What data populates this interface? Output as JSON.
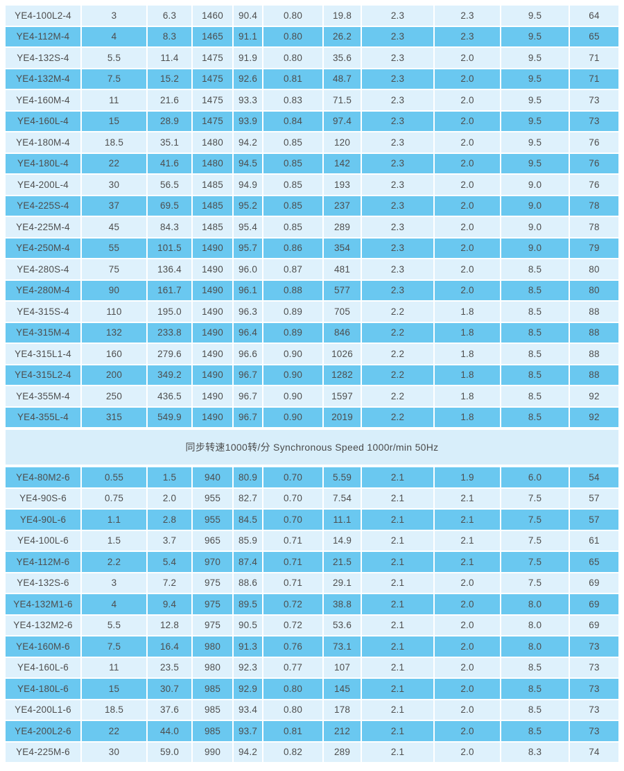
{
  "colors": {
    "row_dark": "#6AC8F0",
    "row_light": "#DEF1FC",
    "divider_band": "#D8EEFA",
    "grid_line": "#FFFFFF",
    "text": "#4D4D4D"
  },
  "divider": {
    "label": "同步转速1000转/分 Synchronous Speed 1000r/min 50Hz"
  },
  "table_1500rpm": {
    "rows": [
      [
        "YE4-100L2-4",
        "3",
        "6.3",
        "1460",
        "90.4",
        "0.80",
        "19.8",
        "2.3",
        "2.3",
        "9.5",
        "64"
      ],
      [
        "YE4-112M-4",
        "4",
        "8.3",
        "1465",
        "91.1",
        "0.80",
        "26.2",
        "2.3",
        "2.3",
        "9.5",
        "65"
      ],
      [
        "YE4-132S-4",
        "5.5",
        "11.4",
        "1475",
        "91.9",
        "0.80",
        "35.6",
        "2.3",
        "2.0",
        "9.5",
        "71"
      ],
      [
        "YE4-132M-4",
        "7.5",
        "15.2",
        "1475",
        "92.6",
        "0.81",
        "48.7",
        "2.3",
        "2.0",
        "9.5",
        "71"
      ],
      [
        "YE4-160M-4",
        "11",
        "21.6",
        "1475",
        "93.3",
        "0.83",
        "71.5",
        "2.3",
        "2.0",
        "9.5",
        "73"
      ],
      [
        "YE4-160L-4",
        "15",
        "28.9",
        "1475",
        "93.9",
        "0.84",
        "97.4",
        "2.3",
        "2.0",
        "9.5",
        "73"
      ],
      [
        "YE4-180M-4",
        "18.5",
        "35.1",
        "1480",
        "94.2",
        "0.85",
        "120",
        "2.3",
        "2.0",
        "9.5",
        "76"
      ],
      [
        "YE4-180L-4",
        "22",
        "41.6",
        "1480",
        "94.5",
        "0.85",
        "142",
        "2.3",
        "2.0",
        "9.5",
        "76"
      ],
      [
        "YE4-200L-4",
        "30",
        "56.5",
        "1485",
        "94.9",
        "0.85",
        "193",
        "2.3",
        "2.0",
        "9.0",
        "76"
      ],
      [
        "YE4-225S-4",
        "37",
        "69.5",
        "1485",
        "95.2",
        "0.85",
        "237",
        "2.3",
        "2.0",
        "9.0",
        "78"
      ],
      [
        "YE4-225M-4",
        "45",
        "84.3",
        "1485",
        "95.4",
        "0.85",
        "289",
        "2.3",
        "2.0",
        "9.0",
        "78"
      ],
      [
        "YE4-250M-4",
        "55",
        "101.5",
        "1490",
        "95.7",
        "0.86",
        "354",
        "2.3",
        "2.0",
        "9.0",
        "79"
      ],
      [
        "YE4-280S-4",
        "75",
        "136.4",
        "1490",
        "96.0",
        "0.87",
        "481",
        "2.3",
        "2.0",
        "8.5",
        "80"
      ],
      [
        "YE4-280M-4",
        "90",
        "161.7",
        "1490",
        "96.1",
        "0.88",
        "577",
        "2.3",
        "2.0",
        "8.5",
        "80"
      ],
      [
        "YE4-315S-4",
        "110",
        "195.0",
        "1490",
        "96.3",
        "0.89",
        "705",
        "2.2",
        "1.8",
        "8.5",
        "88"
      ],
      [
        "YE4-315M-4",
        "132",
        "233.8",
        "1490",
        "96.4",
        "0.89",
        "846",
        "2.2",
        "1.8",
        "8.5",
        "88"
      ],
      [
        "YE4-315L1-4",
        "160",
        "279.6",
        "1490",
        "96.6",
        "0.90",
        "1026",
        "2.2",
        "1.8",
        "8.5",
        "88"
      ],
      [
        "YE4-315L2-4",
        "200",
        "349.2",
        "1490",
        "96.7",
        "0.90",
        "1282",
        "2.2",
        "1.8",
        "8.5",
        "88"
      ],
      [
        "YE4-355M-4",
        "250",
        "436.5",
        "1490",
        "96.7",
        "0.90",
        "1597",
        "2.2",
        "1.8",
        "8.5",
        "92"
      ],
      [
        "YE4-355L-4",
        "315",
        "549.9",
        "1490",
        "96.7",
        "0.90",
        "2019",
        "2.2",
        "1.8",
        "8.5",
        "92"
      ]
    ]
  },
  "table_1000rpm": {
    "rows": [
      [
        "YE4-80M2-6",
        "0.55",
        "1.5",
        "940",
        "80.9",
        "0.70",
        "5.59",
        "2.1",
        "1.9",
        "6.0",
        "54"
      ],
      [
        "YE4-90S-6",
        "0.75",
        "2.0",
        "955",
        "82.7",
        "0.70",
        "7.54",
        "2.1",
        "2.1",
        "7.5",
        "57"
      ],
      [
        "YE4-90L-6",
        "1.1",
        "2.8",
        "955",
        "84.5",
        "0.70",
        "11.1",
        "2.1",
        "2.1",
        "7.5",
        "57"
      ],
      [
        "YE4-100L-6",
        "1.5",
        "3.7",
        "965",
        "85.9",
        "0.71",
        "14.9",
        "2.1",
        "2.1",
        "7.5",
        "61"
      ],
      [
        "YE4-112M-6",
        "2.2",
        "5.4",
        "970",
        "87.4",
        "0.71",
        "21.5",
        "2.1",
        "2.1",
        "7.5",
        "65"
      ],
      [
        "YE4-132S-6",
        "3",
        "7.2",
        "975",
        "88.6",
        "0.71",
        "29.1",
        "2.1",
        "2.0",
        "7.5",
        "69"
      ],
      [
        "YE4-132M1-6",
        "4",
        "9.4",
        "975",
        "89.5",
        "0.72",
        "38.8",
        "2.1",
        "2.0",
        "8.0",
        "69"
      ],
      [
        "YE4-132M2-6",
        "5.5",
        "12.8",
        "975",
        "90.5",
        "0.72",
        "53.6",
        "2.1",
        "2.0",
        "8.0",
        "69"
      ],
      [
        "YE4-160M-6",
        "7.5",
        "16.4",
        "980",
        "91.3",
        "0.76",
        "73.1",
        "2.1",
        "2.0",
        "8.0",
        "73"
      ],
      [
        "YE4-160L-6",
        "11",
        "23.5",
        "980",
        "92.3",
        "0.77",
        "107",
        "2.1",
        "2.0",
        "8.5",
        "73"
      ],
      [
        "YE4-180L-6",
        "15",
        "30.7",
        "985",
        "92.9",
        "0.80",
        "145",
        "2.1",
        "2.0",
        "8.5",
        "73"
      ],
      [
        "YE4-200L1-6",
        "18.5",
        "37.6",
        "985",
        "93.4",
        "0.80",
        "178",
        "2.1",
        "2.0",
        "8.5",
        "73"
      ],
      [
        "YE4-200L2-6",
        "22",
        "44.0",
        "985",
        "93.7",
        "0.81",
        "212",
        "2.1",
        "2.0",
        "8.5",
        "73"
      ],
      [
        "YE4-225M-6",
        "30",
        "59.0",
        "990",
        "94.2",
        "0.82",
        "289",
        "2.1",
        "2.0",
        "8.3",
        "74"
      ]
    ]
  }
}
